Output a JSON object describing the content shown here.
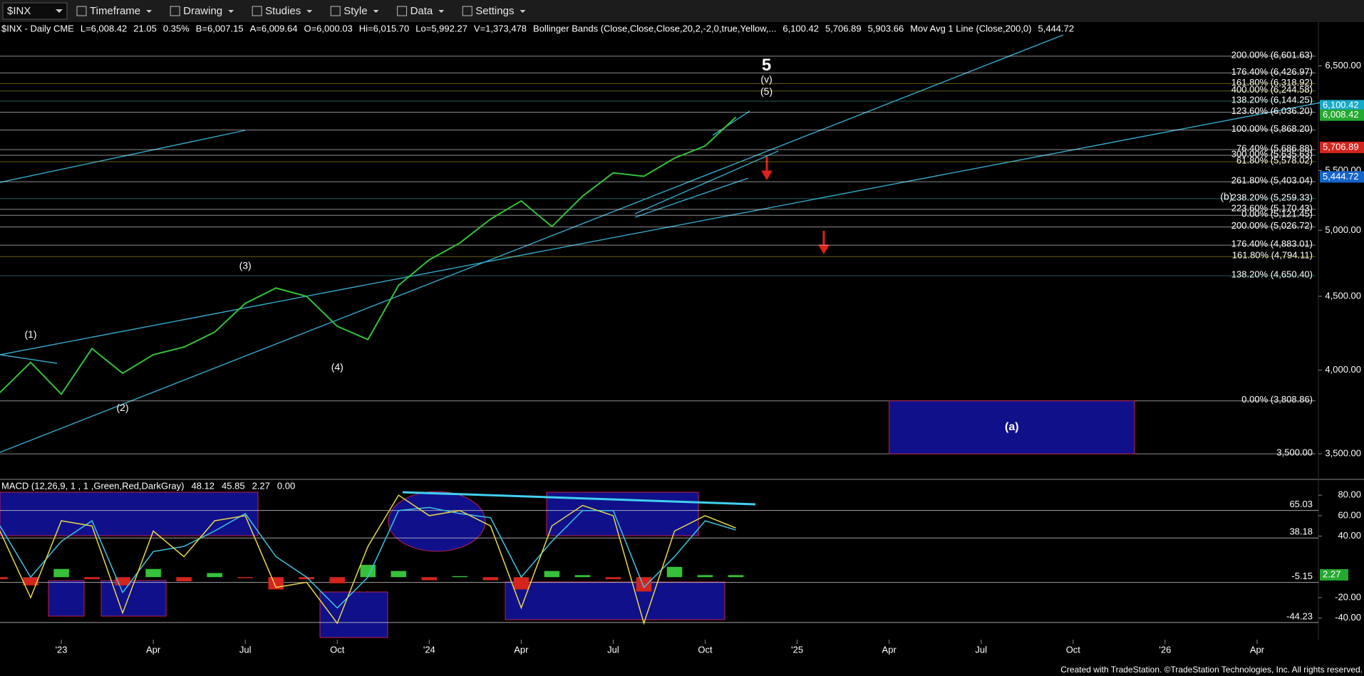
{
  "toolbar": {
    "symbol": "$INX",
    "items": [
      "Timeframe",
      "Drawing",
      "Studies",
      "Style",
      "Data",
      "Settings"
    ]
  },
  "header": [
    {
      "text": "$INX - Daily  CME",
      "color": "#ffffff"
    },
    {
      "text": "L=6,008.42",
      "color": "#4cd964"
    },
    {
      "text": "21.05",
      "color": "#4cd964"
    },
    {
      "text": "0.35%",
      "color": "#4cd964"
    },
    {
      "text": "B=6,007.15",
      "color": "#ffffff"
    },
    {
      "text": "A=6,009.64",
      "color": "#ffffff"
    },
    {
      "text": "O=6,000.03",
      "color": "#ffffff"
    },
    {
      "text": "Hi=6,015.70",
      "color": "#ffffff"
    },
    {
      "text": "Lo=5,992.27",
      "color": "#ffffff"
    },
    {
      "text": "V=1,373,478",
      "color": "#ffffff"
    },
    {
      "text": "Bollinger Bands (Close,Close,Close,20,2,-2,0,true,Yellow,...",
      "color": "#ffffff"
    },
    {
      "text": "6,100.42",
      "color": "#3fc3e0"
    },
    {
      "text": "5,706.89",
      "color": "#e0302a"
    },
    {
      "text": "5,903.66",
      "color": "#9a9a9a"
    },
    {
      "text": "Mov Avg 1 Line (Close,200,0)",
      "color": "#ffffff"
    },
    {
      "text": "5,444.72",
      "color": "#3fc3e0"
    }
  ],
  "footer": "Created with TradeStation. ©TradeStation Technologies, Inc. All rights reserved.",
  "chart_data": [
    {
      "type": "line",
      "log_scale": true,
      "color": "#35c23a",
      "x": [
        "2022-11",
        "2022-12",
        "2023-01",
        "2023-02",
        "2023-03",
        "2023-04",
        "2023-05",
        "2023-06",
        "2023-07",
        "2023-08",
        "2023-09",
        "2023-10",
        "2023-11",
        "2023-12",
        "2024-01",
        "2024-02",
        "2024-03",
        "2024-04",
        "2024-05",
        "2024-06",
        "2024-07",
        "2024-08",
        "2024-09",
        "2024-10",
        "2024-11"
      ],
      "values": [
        3860,
        4050,
        3850,
        4140,
        3980,
        4100,
        4150,
        4250,
        4450,
        4560,
        4500,
        4290,
        4200,
        4580,
        4770,
        4900,
        5090,
        5240,
        5030,
        5280,
        5480,
        5450,
        5610,
        5720,
        5990
      ],
      "xlim": [
        "2022-11",
        "2026-06"
      ],
      "xticks": [
        {
          "value": "2023-01",
          "label": "'23"
        },
        {
          "value": "2023-04",
          "label": "Apr"
        },
        {
          "value": "2023-07",
          "label": "Jul"
        },
        {
          "value": "2023-10",
          "label": "Oct"
        },
        {
          "value": "2024-01",
          "label": "'24"
        },
        {
          "value": "2024-04",
          "label": "Apr"
        },
        {
          "value": "2024-07",
          "label": "Jul"
        },
        {
          "value": "2024-10",
          "label": "Oct"
        },
        {
          "value": "2025-01",
          "label": "'25"
        },
        {
          "value": "2025-04",
          "label": "Apr"
        },
        {
          "value": "2025-07",
          "label": "Jul"
        },
        {
          "value": "2025-10",
          "label": "Oct"
        },
        {
          "value": "2026-01",
          "label": "'26"
        },
        {
          "value": "2026-04",
          "label": "Apr"
        }
      ],
      "ylim": [
        3364,
        6806
      ],
      "yticks": [
        {
          "value": 3500,
          "label": "3,500.00"
        },
        {
          "value": 4000,
          "label": "4,000.00"
        },
        {
          "value": 4500,
          "label": "4,500.00"
        },
        {
          "value": 5000,
          "label": "5,000.00"
        },
        {
          "value": 5500,
          "label": "5,500.00"
        },
        {
          "value": 6500,
          "label": "6,500.00"
        }
      ],
      "levels": [
        {
          "value": 6601.63,
          "label": "200.00% (6,601.63)",
          "color": "#ffffff"
        },
        {
          "value": 6426.97,
          "label": "176.40% (6,426.97)",
          "color": "#ffffff"
        },
        {
          "value": 6318.92,
          "label": "161.80% (6,318.92)",
          "color": "#b8b020"
        },
        {
          "value": 6244.58,
          "label": "400.00% (6,244.58)",
          "color": "#b8b020"
        },
        {
          "value": 6144.25,
          "label": "138.20% (6,144.25)",
          "color": "#3aa6a0"
        },
        {
          "value": 6036.2,
          "label": "123.60% (6,036.20)",
          "color": "#ffffff"
        },
        {
          "value": 5868.2,
          "label": "100.00% (5,868.20)",
          "color": "#ffffff"
        },
        {
          "value": 5686.88,
          "label": "76.40% (5,686.88)",
          "color": "#ffffff"
        },
        {
          "value": 5635.63,
          "label": "300.00% (5,635.63)",
          "color": "#ffffff"
        },
        {
          "value": 5578.02,
          "label": "61.80% (5,578.02)",
          "color": "#b8b020"
        },
        {
          "value": 5403.04,
          "label": "261.80% (5,403.04)",
          "color": "#ffffff"
        },
        {
          "value": 5259.33,
          "label": "238.20% (5,259.33)",
          "color": "#3aa6a0"
        },
        {
          "value": 5170.43,
          "label": "223.60% (5,170.43)",
          "color": "#ffffff"
        },
        {
          "value": 5121.45,
          "label": "0.00% (5,121.45)",
          "color": "#ffffff"
        },
        {
          "value": 5026.72,
          "label": "200.00% (5,026.72)",
          "color": "#ffffff"
        },
        {
          "value": 4883.01,
          "label": "176.40% (4,883.01)",
          "color": "#ffffff"
        },
        {
          "value": 4794.11,
          "label": "161.80% (4,794.11)",
          "color": "#b8b020"
        },
        {
          "value": 4650.4,
          "label": "138.20% (4,650.40)",
          "color": "#3aa6a0"
        },
        {
          "value": 3808.86,
          "label": "0.00% (3,808.86)",
          "color": "#ffffff"
        },
        {
          "value": 3500,
          "label": "3,500.00",
          "color": "#ffffff"
        }
      ],
      "price_tags": [
        {
          "value": 6100.42,
          "label": "6,100.42",
          "color": "#17a9c6"
        },
        {
          "value": 6008.42,
          "label": "6,008.42",
          "color": "#25a830"
        },
        {
          "value": 5706.89,
          "label": "5,706.89",
          "color": "#d3241d"
        },
        {
          "value": 5444.72,
          "label": "5,444.72",
          "color": "#1565c8"
        }
      ],
      "annotations": [
        {
          "text": "5",
          "x": "2024-12",
          "y": 6500,
          "color": "#2fd12f"
        },
        {
          "text": "(v)",
          "x": "2024-12",
          "y": 6357,
          "color": "#2fd12f"
        },
        {
          "text": "(5)",
          "x": "2024-12",
          "y": 6232,
          "color": "#2fd12f"
        },
        {
          "text": "(1)",
          "x": "2022-12",
          "y": 4230,
          "color": "#2fd12f"
        },
        {
          "text": "(2)",
          "x": "2023-03",
          "y": 3764,
          "color": "#2fd12f"
        },
        {
          "text": "(3)",
          "x": "2023-07",
          "y": 4720,
          "color": "#2fd12f"
        },
        {
          "text": "(4)",
          "x": "2023-10",
          "y": 4015,
          "color": "#2fd12f"
        },
        {
          "text": "(b)",
          "x": "2026-03",
          "y": 5270,
          "color": "#2fd12f"
        }
      ],
      "box": {
        "x": [
          "2025-04",
          "2025-12"
        ],
        "y": [
          3500,
          3808.86
        ],
        "label": "(a)",
        "color": "#10108a"
      }
    },
    {
      "type": "line",
      "title": "MACD (12,26,9, 1 , 1 ,Green,Red,DarkGray)",
      "readouts": [
        {
          "text": "48.12",
          "color": "#e8d84a"
        },
        {
          "text": "45.85",
          "color": "#3fc3e0"
        },
        {
          "text": "2.27",
          "color": "#4cd964"
        },
        {
          "text": "0.00",
          "color": "#666666"
        }
      ],
      "x": [
        "2022-11",
        "2022-12",
        "2023-01",
        "2023-02",
        "2023-03",
        "2023-04",
        "2023-05",
        "2023-06",
        "2023-07",
        "2023-08",
        "2023-09",
        "2023-10",
        "2023-11",
        "2023-12",
        "2024-01",
        "2024-02",
        "2024-03",
        "2024-04",
        "2024-05",
        "2024-06",
        "2024-07",
        "2024-08",
        "2024-09",
        "2024-10",
        "2024-11"
      ],
      "macd": {
        "color": "#e8d84a",
        "values": [
          45,
          -20,
          55,
          50,
          -35,
          45,
          20,
          55,
          60,
          -10,
          -5,
          -45,
          30,
          80,
          60,
          65,
          50,
          -30,
          50,
          70,
          60,
          -45,
          45,
          60,
          48
        ]
      },
      "signal": {
        "color": "#3fc3e0",
        "values": [
          50,
          0,
          35,
          55,
          -15,
          25,
          30,
          45,
          62,
          20,
          0,
          -30,
          0,
          65,
          68,
          62,
          58,
          0,
          35,
          65,
          65,
          -10,
          20,
          55,
          46
        ]
      },
      "histogram": {
        "up_color": "#35c23a",
        "down_color": "#d3241d",
        "values": [
          -2,
          -8,
          8,
          -2,
          -8,
          8,
          -4,
          4,
          -1,
          -12,
          -2,
          -6,
          12,
          6,
          -3,
          1,
          -3,
          -12,
          6,
          2,
          -2,
          -14,
          10,
          2,
          2
        ]
      },
      "ylim": [
        -61,
        94
      ],
      "yticks": [
        {
          "value": 80,
          "label": "80.00"
        },
        {
          "value": 60,
          "label": "60.00"
        },
        {
          "value": 40,
          "label": "40.00"
        },
        {
          "value": -20,
          "label": "-20.00"
        },
        {
          "value": -40,
          "label": "-40.00"
        }
      ],
      "levels": [
        65.03,
        38.18,
        -5.15,
        -44.23
      ],
      "tag": 2.27,
      "tag_color": "#25a830"
    }
  ]
}
